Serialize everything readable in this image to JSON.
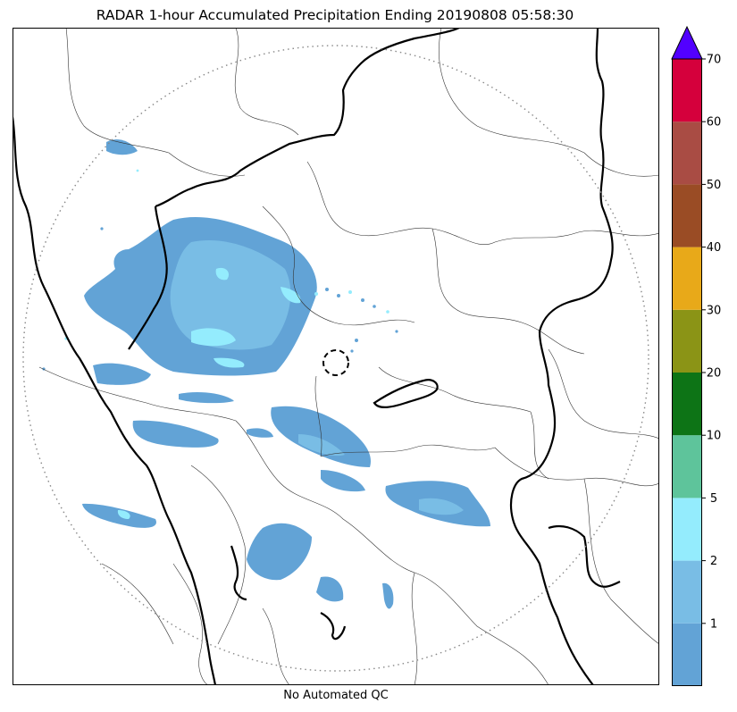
{
  "title": "RADAR 1-hour Accumulated Precipitation Ending 20190808 05:58:30",
  "footer_note": "No Automated QC",
  "colorbar": {
    "extend": "max",
    "extend_color": "#5200ff",
    "bins": [
      {
        "color": "#62a3d6",
        "label": ""
      },
      {
        "color": "#79bde5",
        "label": "1"
      },
      {
        "color": "#94ecfd",
        "label": "2"
      },
      {
        "color": "#5ec49b",
        "label": "5"
      },
      {
        "color": "#0d7416",
        "label": "10"
      },
      {
        "color": "#8b9416",
        "label": "20"
      },
      {
        "color": "#e8a919",
        "label": "30"
      },
      {
        "color": "#9a4c25",
        "label": "40"
      },
      {
        "color": "#a94c44",
        "label": "50"
      },
      {
        "color": "#d5003c",
        "label": "60"
      }
    ],
    "top_label": "70"
  },
  "map": {
    "range_ring": "dotted",
    "radar_site_marker": "dashed-circle",
    "precip_light_color": "#62a3d6",
    "precip_mid_color": "#79bde5",
    "precip_high_color": "#94ecfd"
  }
}
